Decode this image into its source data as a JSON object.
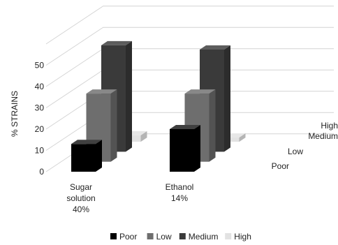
{
  "chart_data": {
    "type": "bar",
    "title": "",
    "ylabel": "% STRAINS",
    "xlabel": "",
    "ylim": [
      0,
      60
    ],
    "yticks": [
      0,
      10,
      20,
      30,
      40,
      50
    ],
    "categories": [
      [
        "Sugar",
        "solution",
        "40%"
      ],
      [
        "Ethanol",
        "14%"
      ]
    ],
    "series": [
      {
        "name": "Poor",
        "color": "#000000",
        "values": [
          13,
          20
        ]
      },
      {
        "name": "Low",
        "color": "#6e6e6e",
        "values": [
          32,
          32
        ]
      },
      {
        "name": "Medium",
        "color": "#3a3a3a",
        "values": [
          50,
          48
        ]
      },
      {
        "name": "High",
        "color": "#e2e2e2",
        "values": [
          3,
          2
        ]
      }
    ],
    "depth_axis_labels": [
      "High",
      "Medium",
      "Low",
      "Poor"
    ],
    "legend_position": "bottom",
    "grid": true,
    "style": "3d-column"
  }
}
